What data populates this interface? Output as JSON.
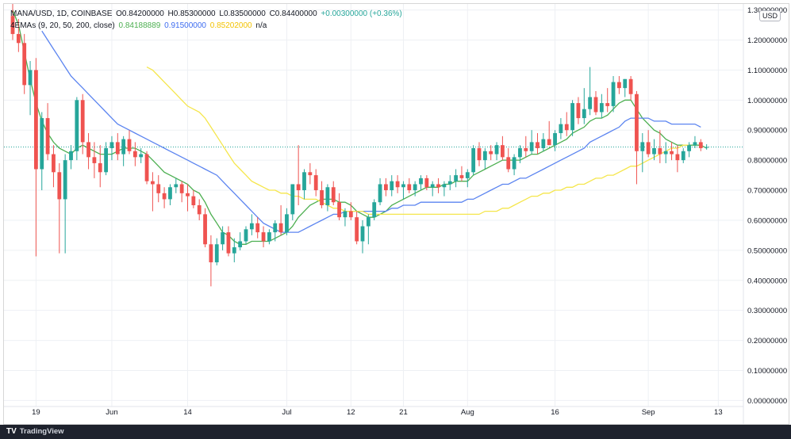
{
  "chart_header": {
    "symbol": "MANA/USD, 1D, COINBASE",
    "open": "O0.84200000",
    "high": "H0.85300000",
    "low": "L0.83500000",
    "close": "C0.84400000",
    "change": "+0.00300000 (+0.36%)",
    "ema_label": "4EMAs (9, 20, 50, 200, close)",
    "ema_values": [
      "0.84188889",
      "0.91500000",
      "0.85202000",
      "n/a"
    ]
  },
  "currency": "USD",
  "branding": "TradingView",
  "colors": {
    "up": "#26a69a",
    "down": "#ef5350",
    "ema9": "#4caf50",
    "ema20": "#5b84f0",
    "ema50": "#f5e64b",
    "grid": "#eef0f4",
    "price_line": "#26a69a"
  },
  "chart_data": {
    "type": "candlestick",
    "ylim": [
      -0.02,
      1.32
    ],
    "y_ticks": [
      "1.30000000",
      "1.20000000",
      "1.10000000",
      "1.00000000",
      "0.90000000",
      "0.80000000",
      "0.70000000",
      "0.60000000",
      "0.50000000",
      "0.40000000",
      "0.30000000",
      "0.20000000",
      "0.10000000",
      "0.00000000"
    ],
    "x_ticks": [
      {
        "label": "19",
        "index": 4
      },
      {
        "label": "Jun",
        "index": 17
      },
      {
        "label": "14",
        "index": 30
      },
      {
        "label": "Jul",
        "index": 47
      },
      {
        "label": "12",
        "index": 58
      },
      {
        "label": "21",
        "index": 67
      },
      {
        "label": "Aug",
        "index": 78
      },
      {
        "label": "16",
        "index": 93
      },
      {
        "label": "Sep",
        "index": 109
      },
      {
        "label": "13",
        "index": 121
      }
    ],
    "last_price": 0.844,
    "candles": [
      [
        1.28,
        1.32,
        1.2,
        1.22
      ],
      [
        1.22,
        1.27,
        1.16,
        1.19
      ],
      [
        1.19,
        1.22,
        1.02,
        1.05
      ],
      [
        1.05,
        1.13,
        0.95,
        1.1
      ],
      [
        1.1,
        1.14,
        0.48,
        0.77
      ],
      [
        0.77,
        0.96,
        0.7,
        0.94
      ],
      [
        0.94,
        0.99,
        0.8,
        0.82
      ],
      [
        0.82,
        0.85,
        0.71,
        0.76
      ],
      [
        0.76,
        0.79,
        0.49,
        0.67
      ],
      [
        0.67,
        0.82,
        0.49,
        0.8
      ],
      [
        0.8,
        0.85,
        0.77,
        0.83
      ],
      [
        0.83,
        1.01,
        0.8,
        1.0
      ],
      [
        1.0,
        1.02,
        0.82,
        0.86
      ],
      [
        0.86,
        0.89,
        0.77,
        0.81
      ],
      [
        0.81,
        0.86,
        0.74,
        0.79
      ],
      [
        0.79,
        0.85,
        0.71,
        0.76
      ],
      [
        0.76,
        0.86,
        0.75,
        0.84
      ],
      [
        0.84,
        0.88,
        0.8,
        0.86
      ],
      [
        0.86,
        0.89,
        0.8,
        0.82
      ],
      [
        0.82,
        0.88,
        0.78,
        0.87
      ],
      [
        0.87,
        0.9,
        0.82,
        0.83
      ],
      [
        0.83,
        0.86,
        0.78,
        0.81
      ],
      [
        0.81,
        0.84,
        0.79,
        0.82
      ],
      [
        0.82,
        0.83,
        0.72,
        0.73
      ],
      [
        0.73,
        0.76,
        0.63,
        0.72
      ],
      [
        0.72,
        0.75,
        0.66,
        0.69
      ],
      [
        0.69,
        0.71,
        0.64,
        0.67
      ],
      [
        0.67,
        0.72,
        0.65,
        0.71
      ],
      [
        0.71,
        0.74,
        0.69,
        0.72
      ],
      [
        0.72,
        0.73,
        0.66,
        0.69
      ],
      [
        0.69,
        0.72,
        0.63,
        0.68
      ],
      [
        0.68,
        0.7,
        0.64,
        0.65
      ],
      [
        0.65,
        0.67,
        0.6,
        0.62
      ],
      [
        0.62,
        0.64,
        0.51,
        0.52
      ],
      [
        0.52,
        0.55,
        0.38,
        0.46
      ],
      [
        0.46,
        0.54,
        0.45,
        0.52
      ],
      [
        0.52,
        0.58,
        0.5,
        0.56
      ],
      [
        0.56,
        0.58,
        0.48,
        0.49
      ],
      [
        0.49,
        0.54,
        0.46,
        0.51
      ],
      [
        0.51,
        0.56,
        0.5,
        0.53
      ],
      [
        0.53,
        0.58,
        0.52,
        0.57
      ],
      [
        0.57,
        0.62,
        0.55,
        0.59
      ],
      [
        0.59,
        0.61,
        0.54,
        0.56
      ],
      [
        0.56,
        0.58,
        0.51,
        0.53
      ],
      [
        0.53,
        0.57,
        0.52,
        0.56
      ],
      [
        0.56,
        0.6,
        0.53,
        0.59
      ],
      [
        0.59,
        0.65,
        0.55,
        0.56
      ],
      [
        0.56,
        0.64,
        0.55,
        0.62
      ],
      [
        0.62,
        0.72,
        0.6,
        0.72
      ],
      [
        0.72,
        0.85,
        0.65,
        0.7
      ],
      [
        0.7,
        0.77,
        0.67,
        0.76
      ],
      [
        0.76,
        0.79,
        0.72,
        0.75
      ],
      [
        0.75,
        0.77,
        0.68,
        0.7
      ],
      [
        0.7,
        0.73,
        0.64,
        0.65
      ],
      [
        0.65,
        0.72,
        0.63,
        0.71
      ],
      [
        0.71,
        0.73,
        0.65,
        0.66
      ],
      [
        0.66,
        0.69,
        0.6,
        0.61
      ],
      [
        0.61,
        0.64,
        0.58,
        0.63
      ],
      [
        0.63,
        0.66,
        0.6,
        0.61
      ],
      [
        0.61,
        0.63,
        0.52,
        0.53
      ],
      [
        0.53,
        0.6,
        0.49,
        0.58
      ],
      [
        0.58,
        0.62,
        0.52,
        0.61
      ],
      [
        0.61,
        0.67,
        0.6,
        0.66
      ],
      [
        0.66,
        0.74,
        0.65,
        0.72
      ],
      [
        0.72,
        0.74,
        0.68,
        0.7
      ],
      [
        0.7,
        0.75,
        0.68,
        0.73
      ],
      [
        0.73,
        0.75,
        0.69,
        0.71
      ],
      [
        0.71,
        0.73,
        0.67,
        0.72
      ],
      [
        0.72,
        0.74,
        0.69,
        0.7
      ],
      [
        0.7,
        0.73,
        0.68,
        0.72
      ],
      [
        0.72,
        0.75,
        0.7,
        0.74
      ],
      [
        0.74,
        0.75,
        0.7,
        0.71
      ],
      [
        0.71,
        0.73,
        0.68,
        0.72
      ],
      [
        0.72,
        0.74,
        0.69,
        0.71
      ],
      [
        0.71,
        0.73,
        0.68,
        0.72
      ],
      [
        0.72,
        0.75,
        0.7,
        0.73
      ],
      [
        0.73,
        0.77,
        0.71,
        0.75
      ],
      [
        0.75,
        0.78,
        0.73,
        0.74
      ],
      [
        0.74,
        0.77,
        0.71,
        0.76
      ],
      [
        0.76,
        0.85,
        0.75,
        0.84
      ],
      [
        0.84,
        0.86,
        0.78,
        0.8
      ],
      [
        0.8,
        0.84,
        0.77,
        0.83
      ],
      [
        0.83,
        0.85,
        0.8,
        0.82
      ],
      [
        0.82,
        0.86,
        0.8,
        0.85
      ],
      [
        0.85,
        0.88,
        0.8,
        0.81
      ],
      [
        0.81,
        0.84,
        0.76,
        0.77
      ],
      [
        0.77,
        0.82,
        0.75,
        0.81
      ],
      [
        0.81,
        0.85,
        0.79,
        0.84
      ],
      [
        0.84,
        0.88,
        0.81,
        0.83
      ],
      [
        0.83,
        0.9,
        0.82,
        0.86
      ],
      [
        0.86,
        0.89,
        0.82,
        0.84
      ],
      [
        0.84,
        0.89,
        0.83,
        0.87
      ],
      [
        0.87,
        0.93,
        0.85,
        0.85
      ],
      [
        0.85,
        0.9,
        0.83,
        0.89
      ],
      [
        0.89,
        0.94,
        0.87,
        0.92
      ],
      [
        0.92,
        0.96,
        0.88,
        0.9
      ],
      [
        0.9,
        1.0,
        0.88,
        0.99
      ],
      [
        0.99,
        1.01,
        0.92,
        0.94
      ],
      [
        0.94,
        1.04,
        0.92,
        0.97
      ],
      [
        0.97,
        1.11,
        0.95,
        1.01
      ],
      [
        1.01,
        1.03,
        0.95,
        0.96
      ],
      [
        0.96,
        1.02,
        0.94,
        0.99
      ],
      [
        0.99,
        1.04,
        0.96,
        0.98
      ],
      [
        0.98,
        1.08,
        0.96,
        1.06
      ],
      [
        1.06,
        1.08,
        1.02,
        1.04
      ],
      [
        1.04,
        1.07,
        1.01,
        1.07
      ],
      [
        1.07,
        1.08,
        1.0,
        1.02
      ],
      [
        1.02,
        1.03,
        0.72,
        0.83
      ],
      [
        0.83,
        0.89,
        0.76,
        0.86
      ],
      [
        0.86,
        0.9,
        0.81,
        0.82
      ],
      [
        0.82,
        0.87,
        0.8,
        0.84
      ],
      [
        0.84,
        0.9,
        0.79,
        0.82
      ],
      [
        0.82,
        0.86,
        0.79,
        0.83
      ],
      [
        0.83,
        0.86,
        0.8,
        0.82
      ],
      [
        0.82,
        0.85,
        0.76,
        0.8
      ],
      [
        0.8,
        0.84,
        0.79,
        0.83
      ],
      [
        0.83,
        0.86,
        0.81,
        0.85
      ],
      [
        0.85,
        0.88,
        0.84,
        0.86
      ],
      [
        0.86,
        0.87,
        0.83,
        0.84
      ],
      [
        0.842,
        0.853,
        0.835,
        0.844
      ]
    ],
    "series": [
      {
        "name": "EMA 9",
        "start": 0,
        "values": [
          1.3,
          1.25,
          1.16,
          1.07,
          0.99,
          0.93,
          0.89,
          0.86,
          0.84,
          0.83,
          0.82,
          0.84,
          0.85,
          0.84,
          0.83,
          0.82,
          0.82,
          0.82,
          0.83,
          0.84,
          0.84,
          0.84,
          0.83,
          0.82,
          0.8,
          0.78,
          0.76,
          0.75,
          0.74,
          0.73,
          0.72,
          0.7,
          0.69,
          0.66,
          0.62,
          0.59,
          0.56,
          0.55,
          0.53,
          0.52,
          0.52,
          0.53,
          0.53,
          0.53,
          0.53,
          0.54,
          0.55,
          0.56,
          0.58,
          0.61,
          0.63,
          0.65,
          0.66,
          0.67,
          0.67,
          0.67,
          0.66,
          0.66,
          0.65,
          0.63,
          0.62,
          0.61,
          0.61,
          0.62,
          0.63,
          0.65,
          0.66,
          0.67,
          0.68,
          0.69,
          0.7,
          0.71,
          0.71,
          0.71,
          0.72,
          0.72,
          0.73,
          0.73,
          0.73,
          0.75,
          0.76,
          0.77,
          0.78,
          0.79,
          0.8,
          0.8,
          0.8,
          0.8,
          0.81,
          0.82,
          0.82,
          0.83,
          0.84,
          0.85,
          0.86,
          0.87,
          0.89,
          0.9,
          0.91,
          0.93,
          0.94,
          0.94,
          0.95,
          0.97,
          0.99,
          1.0,
          1.0,
          0.97,
          0.94,
          0.92,
          0.9,
          0.89,
          0.87,
          0.86,
          0.85,
          0.85,
          0.85,
          0.85,
          0.85,
          0.84
        ]
      },
      {
        "name": "EMA 20",
        "start": 5,
        "values": [
          1.23,
          1.2,
          1.17,
          1.14,
          1.11,
          1.08,
          1.06,
          1.04,
          1.02,
          1.0,
          0.98,
          0.96,
          0.94,
          0.92,
          0.91,
          0.9,
          0.89,
          0.88,
          0.87,
          0.86,
          0.85,
          0.84,
          0.83,
          0.82,
          0.81,
          0.8,
          0.79,
          0.78,
          0.77,
          0.76,
          0.75,
          0.73,
          0.71,
          0.69,
          0.67,
          0.65,
          0.63,
          0.61,
          0.59,
          0.58,
          0.57,
          0.56,
          0.56,
          0.56,
          0.56,
          0.57,
          0.58,
          0.59,
          0.6,
          0.61,
          0.62,
          0.62,
          0.63,
          0.63,
          0.63,
          0.63,
          0.63,
          0.63,
          0.63,
          0.63,
          0.64,
          0.64,
          0.65,
          0.65,
          0.65,
          0.66,
          0.66,
          0.66,
          0.66,
          0.66,
          0.66,
          0.66,
          0.66,
          0.67,
          0.67,
          0.68,
          0.69,
          0.7,
          0.71,
          0.72,
          0.72,
          0.73,
          0.74,
          0.74,
          0.75,
          0.76,
          0.77,
          0.78,
          0.79,
          0.8,
          0.81,
          0.82,
          0.83,
          0.84,
          0.86,
          0.87,
          0.88,
          0.89,
          0.9,
          0.91,
          0.93,
          0.94,
          0.94,
          0.94,
          0.94,
          0.93,
          0.93,
          0.93,
          0.92,
          0.92,
          0.92,
          0.92,
          0.92,
          0.91
        ]
      },
      {
        "name": "EMA 50",
        "start": 23,
        "values": [
          1.11,
          1.1,
          1.08,
          1.06,
          1.04,
          1.02,
          1.0,
          0.98,
          0.97,
          0.96,
          0.94,
          0.91,
          0.88,
          0.85,
          0.82,
          0.79,
          0.77,
          0.75,
          0.73,
          0.72,
          0.71,
          0.7,
          0.7,
          0.69,
          0.69,
          0.68,
          0.68,
          0.67,
          0.67,
          0.67,
          0.66,
          0.65,
          0.64,
          0.64,
          0.63,
          0.63,
          0.63,
          0.63,
          0.62,
          0.62,
          0.62,
          0.62,
          0.62,
          0.62,
          0.62,
          0.62,
          0.62,
          0.62,
          0.62,
          0.62,
          0.62,
          0.62,
          0.62,
          0.62,
          0.62,
          0.62,
          0.62,
          0.62,
          0.63,
          0.63,
          0.63,
          0.64,
          0.64,
          0.65,
          0.66,
          0.67,
          0.68,
          0.68,
          0.69,
          0.69,
          0.7,
          0.7,
          0.71,
          0.71,
          0.72,
          0.72,
          0.73,
          0.74,
          0.74,
          0.75,
          0.75,
          0.76,
          0.77,
          0.78,
          0.78,
          0.79,
          0.8,
          0.81,
          0.82,
          0.83,
          0.84,
          0.84,
          0.85,
          0.85
        ]
      }
    ]
  }
}
